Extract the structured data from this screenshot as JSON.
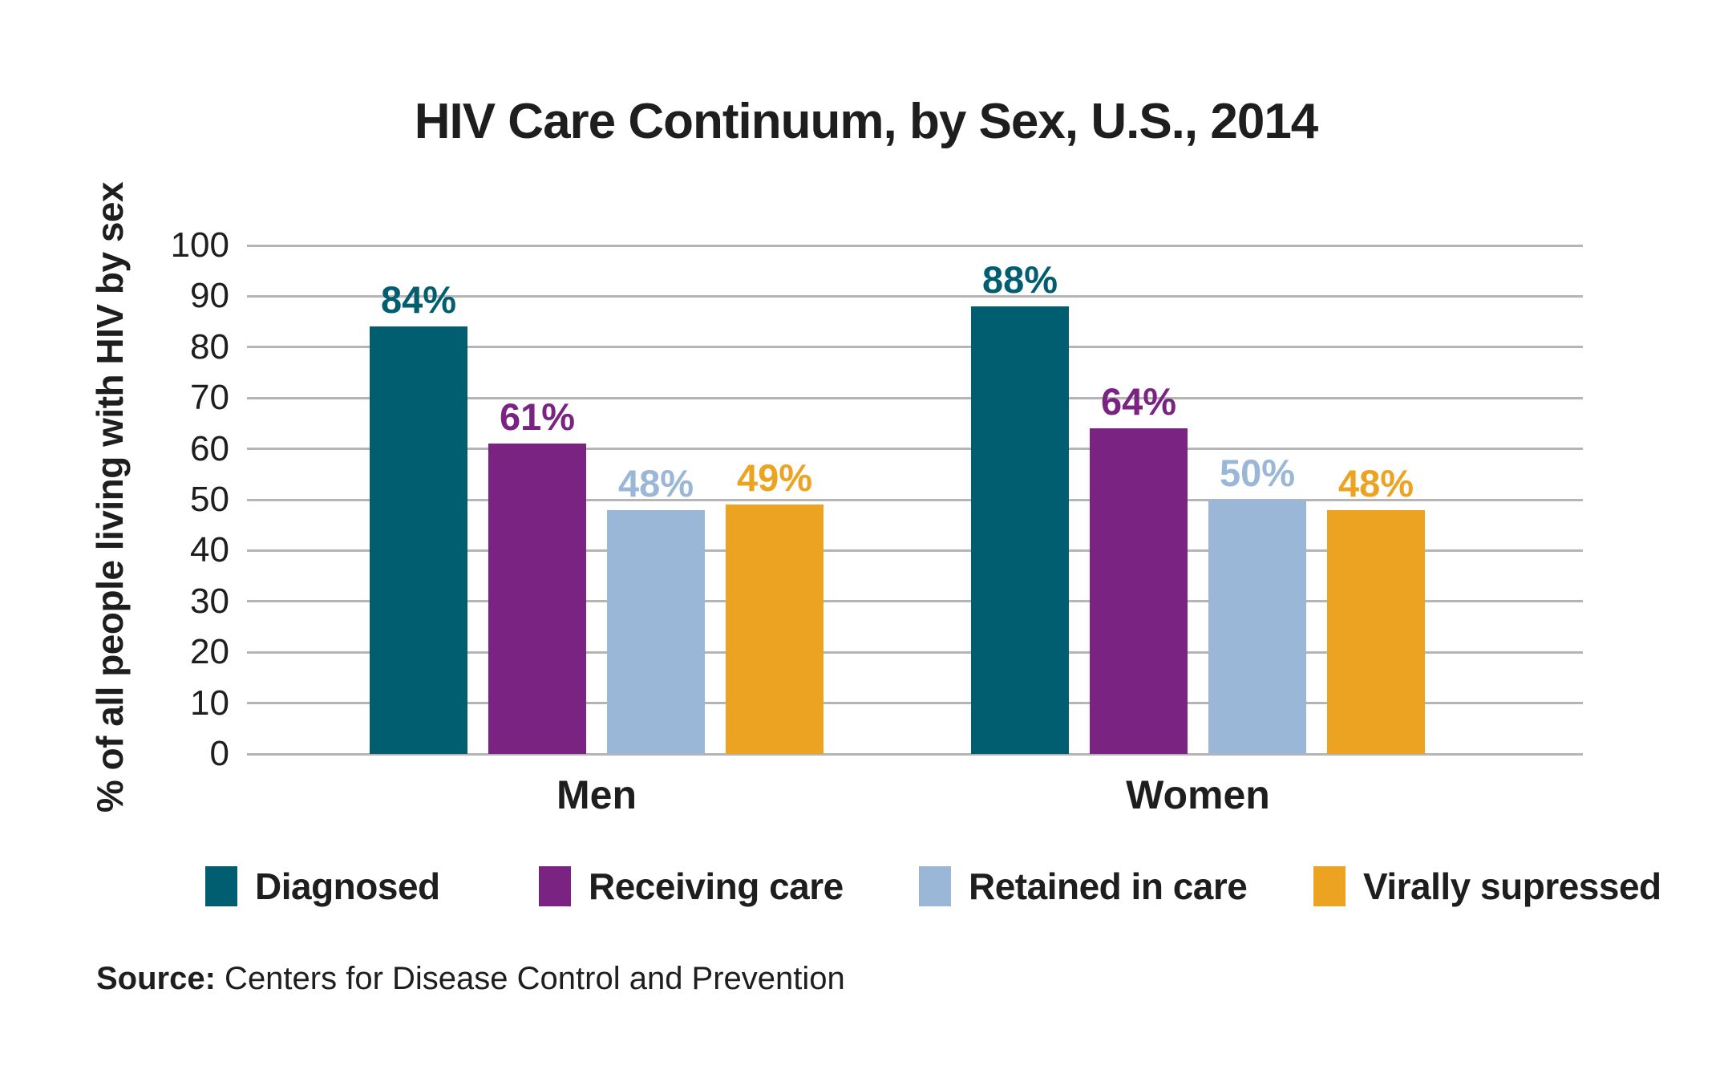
{
  "title": "HIV Care Continuum, by Sex, U.S., 2014",
  "chart_data": {
    "type": "bar",
    "title": "HIV Care Continuum, by Sex, U.S., 2014",
    "ylabel": "% of all people living with HIV by sex",
    "xlabel": "",
    "ylim": [
      0,
      100
    ],
    "yticks": [
      0,
      10,
      20,
      30,
      40,
      50,
      60,
      70,
      80,
      90,
      100
    ],
    "grid": true,
    "legend_position": "bottom",
    "categories": [
      "Men",
      "Women"
    ],
    "series": [
      {
        "name": "Diagnosed",
        "color": "#005E70",
        "values": [
          84,
          88
        ]
      },
      {
        "name": "Receiving care",
        "color": "#7A2383",
        "values": [
          61,
          64
        ]
      },
      {
        "name": "Retained in care",
        "color": "#9BB7D7",
        "values": [
          48,
          50
        ]
      },
      {
        "name": "Virally supressed",
        "color": "#ECA322",
        "values": [
          49,
          48
        ]
      }
    ],
    "value_suffix": "%"
  },
  "colors": {
    "gridline": "#B5B5B5",
    "text": "#1E1E1E"
  },
  "source": {
    "label": "Source:",
    "text": " Centers for Disease Control and Prevention"
  }
}
